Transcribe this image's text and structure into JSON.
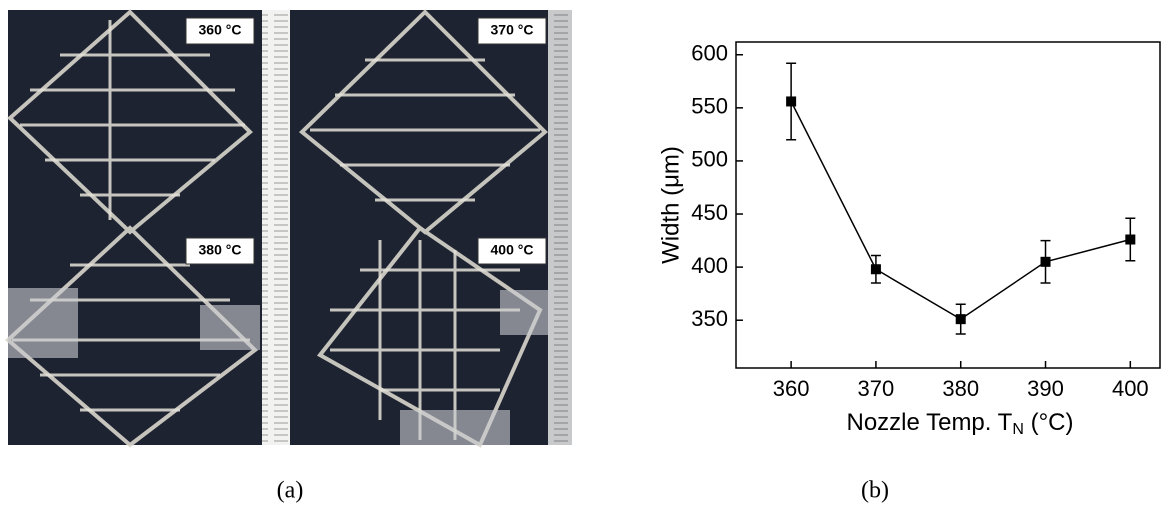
{
  "photo": {
    "labels": [
      "360 °C",
      "370 °C",
      "380 °C",
      "400 °C"
    ]
  },
  "captions": [
    "(a)",
    "(b)"
  ],
  "chart_data": {
    "type": "line",
    "x_label": [
      "Nozzle Temp. T",
      "N",
      " (°C)"
    ],
    "y_label": "Width (μm)",
    "x": [
      360,
      370,
      380,
      390,
      400
    ],
    "values": [
      556,
      398,
      351,
      405,
      426
    ],
    "errors": [
      36,
      13,
      14,
      20,
      20
    ],
    "color": "#000000",
    "xlim": [
      353.5,
      403.5
    ],
    "xticks": [
      360,
      370,
      380,
      390,
      400
    ],
    "ylim": [
      305,
      612
    ],
    "yticks": [
      350,
      400,
      450,
      500,
      550,
      600
    ]
  }
}
